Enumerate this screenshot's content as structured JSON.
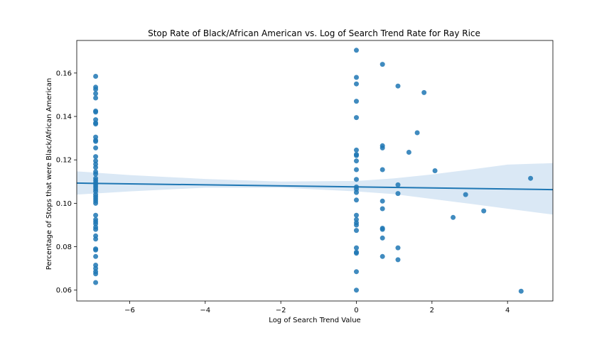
{
  "chart_data": {
    "type": "scatter",
    "title": "Stop Rate of Black/African American vs. Log of Search Trend Rate for Ray Rice",
    "xlabel": "Log of Search Trend Value",
    "ylabel": "Percentage of Stops that were Black/African American",
    "xlim": [
      -7.4,
      5.2
    ],
    "ylim": [
      0.055,
      0.175
    ],
    "xticks": [
      -6,
      -4,
      -2,
      0,
      2,
      4
    ],
    "xtick_labels": [
      "−6",
      "−4",
      "−2",
      "0",
      "2",
      "4"
    ],
    "yticks": [
      0.06,
      0.08,
      0.1,
      0.12,
      0.14,
      0.16
    ],
    "ytick_labels": [
      "0.06",
      "0.08",
      "0.10",
      "0.12",
      "0.14",
      "0.16"
    ],
    "grid": false,
    "point_color": "#1f77b4",
    "line_color": "#1f77b4",
    "band_color": "#c6dbef",
    "points": [
      {
        "x": -6.9,
        "y": 0.1585
      },
      {
        "x": -6.9,
        "y": 0.1535
      },
      {
        "x": -6.9,
        "y": 0.1525
      },
      {
        "x": -6.9,
        "y": 0.1505
      },
      {
        "x": -6.9,
        "y": 0.1485
      },
      {
        "x": -6.9,
        "y": 0.1425
      },
      {
        "x": -6.9,
        "y": 0.142
      },
      {
        "x": -6.9,
        "y": 0.1385
      },
      {
        "x": -6.9,
        "y": 0.137
      },
      {
        "x": -6.9,
        "y": 0.1365
      },
      {
        "x": -6.9,
        "y": 0.1305
      },
      {
        "x": -6.9,
        "y": 0.129
      },
      {
        "x": -6.9,
        "y": 0.1285
      },
      {
        "x": -6.9,
        "y": 0.1255
      },
      {
        "x": -6.9,
        "y": 0.1215
      },
      {
        "x": -6.9,
        "y": 0.1195
      },
      {
        "x": -6.9,
        "y": 0.118
      },
      {
        "x": -6.9,
        "y": 0.1165
      },
      {
        "x": -6.9,
        "y": 0.1145
      },
      {
        "x": -6.9,
        "y": 0.1135
      },
      {
        "x": -6.9,
        "y": 0.1115
      },
      {
        "x": -6.9,
        "y": 0.1105
      },
      {
        "x": -6.9,
        "y": 0.1095
      },
      {
        "x": -6.9,
        "y": 0.1085
      },
      {
        "x": -6.9,
        "y": 0.1075
      },
      {
        "x": -6.9,
        "y": 0.1065
      },
      {
        "x": -6.9,
        "y": 0.1055
      },
      {
        "x": -6.9,
        "y": 0.104
      },
      {
        "x": -6.9,
        "y": 0.103
      },
      {
        "x": -6.9,
        "y": 0.102
      },
      {
        "x": -6.9,
        "y": 0.101
      },
      {
        "x": -6.9,
        "y": 0.1
      },
      {
        "x": -6.9,
        "y": 0.0945
      },
      {
        "x": -6.9,
        "y": 0.0925
      },
      {
        "x": -6.9,
        "y": 0.0915
      },
      {
        "x": -6.9,
        "y": 0.0905
      },
      {
        "x": -6.9,
        "y": 0.089
      },
      {
        "x": -6.9,
        "y": 0.088
      },
      {
        "x": -6.9,
        "y": 0.085
      },
      {
        "x": -6.9,
        "y": 0.0835
      },
      {
        "x": -6.9,
        "y": 0.079
      },
      {
        "x": -6.9,
        "y": 0.0785
      },
      {
        "x": -6.9,
        "y": 0.0755
      },
      {
        "x": -6.9,
        "y": 0.0715
      },
      {
        "x": -6.9,
        "y": 0.07
      },
      {
        "x": -6.9,
        "y": 0.0685
      },
      {
        "x": -6.9,
        "y": 0.0675
      },
      {
        "x": -6.9,
        "y": 0.0635
      },
      {
        "x": 0.0,
        "y": 0.1705
      },
      {
        "x": 0.0,
        "y": 0.158
      },
      {
        "x": 0.0,
        "y": 0.155
      },
      {
        "x": 0.0,
        "y": 0.147
      },
      {
        "x": 0.0,
        "y": 0.1395
      },
      {
        "x": 0.0,
        "y": 0.1245
      },
      {
        "x": 0.0,
        "y": 0.1225
      },
      {
        "x": 0.0,
        "y": 0.122
      },
      {
        "x": 0.0,
        "y": 0.1195
      },
      {
        "x": 0.0,
        "y": 0.1155
      },
      {
        "x": 0.0,
        "y": 0.111
      },
      {
        "x": 0.0,
        "y": 0.1075
      },
      {
        "x": 0.0,
        "y": 0.1065
      },
      {
        "x": 0.0,
        "y": 0.105
      },
      {
        "x": 0.0,
        "y": 0.1015
      },
      {
        "x": 0.0,
        "y": 0.0945
      },
      {
        "x": 0.0,
        "y": 0.0925
      },
      {
        "x": 0.0,
        "y": 0.091
      },
      {
        "x": 0.0,
        "y": 0.09
      },
      {
        "x": 0.0,
        "y": 0.0875
      },
      {
        "x": 0.0,
        "y": 0.0795
      },
      {
        "x": 0.0,
        "y": 0.0775
      },
      {
        "x": 0.0,
        "y": 0.077
      },
      {
        "x": 0.0,
        "y": 0.0685
      },
      {
        "x": 0.0,
        "y": 0.06
      },
      {
        "x": 0.69,
        "y": 0.164
      },
      {
        "x": 0.69,
        "y": 0.1265
      },
      {
        "x": 0.69,
        "y": 0.1255
      },
      {
        "x": 0.69,
        "y": 0.1155
      },
      {
        "x": 0.69,
        "y": 0.101
      },
      {
        "x": 0.69,
        "y": 0.0975
      },
      {
        "x": 0.69,
        "y": 0.0885
      },
      {
        "x": 0.69,
        "y": 0.088
      },
      {
        "x": 0.69,
        "y": 0.084
      },
      {
        "x": 0.69,
        "y": 0.0755
      },
      {
        "x": 1.1,
        "y": 0.154
      },
      {
        "x": 1.1,
        "y": 0.1085
      },
      {
        "x": 1.1,
        "y": 0.1045
      },
      {
        "x": 1.1,
        "y": 0.0795
      },
      {
        "x": 1.1,
        "y": 0.074
      },
      {
        "x": 1.39,
        "y": 0.1235
      },
      {
        "x": 1.61,
        "y": 0.1325
      },
      {
        "x": 1.79,
        "y": 0.151
      },
      {
        "x": 2.08,
        "y": 0.115
      },
      {
        "x": 2.56,
        "y": 0.0935
      },
      {
        "x": 2.89,
        "y": 0.104
      },
      {
        "x": 3.37,
        "y": 0.0965
      },
      {
        "x": 4.36,
        "y": 0.0595
      },
      {
        "x": 4.61,
        "y": 0.1115
      }
    ],
    "regression": {
      "x": [
        -7.4,
        5.2
      ],
      "y": [
        0.1093,
        0.1063
      ]
    },
    "ci_band": {
      "x": [
        -7.4,
        -6.0,
        -4.0,
        -2.0,
        0.0,
        1.0,
        2.0,
        3.0,
        4.0,
        5.2
      ],
      "upper": [
        0.1147,
        0.113,
        0.1112,
        0.11,
        0.1103,
        0.1115,
        0.1133,
        0.1155,
        0.1178,
        0.1185
      ],
      "lower": [
        0.104,
        0.1055,
        0.1072,
        0.1072,
        0.1055,
        0.1042,
        0.102,
        0.0998,
        0.0975,
        0.0948
      ]
    }
  }
}
